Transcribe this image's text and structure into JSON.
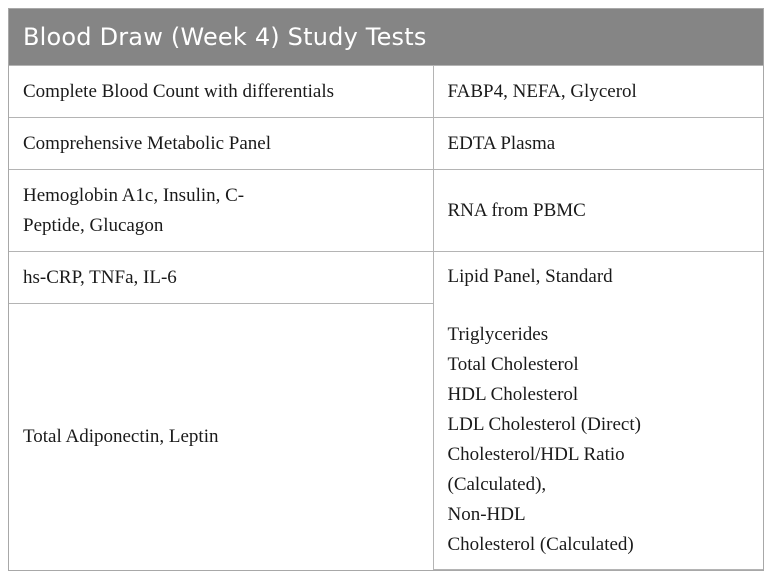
{
  "header": {
    "title": "Blood Draw (Week 4) Study Tests"
  },
  "rows": [
    {
      "left": "Complete Blood Count with differentials",
      "right": "FABP4, NEFA, Glycerol"
    },
    {
      "left": "Comprehensive Metabolic Panel",
      "right": "EDTA Plasma"
    },
    {
      "left_line1": "Hemoglobin A1c, Insulin, C-",
      "left_line2": "Peptide, Glucagon",
      "right": "RNA from PBMC"
    }
  ],
  "row4": {
    "left": "hs-CRP, TNFa, IL-6"
  },
  "row5": {
    "left": "Total Adiponectin, Leptin"
  },
  "lipid": {
    "title": "Lipid Panel, Standard",
    "items": [
      "Triglycerides",
      "Total Cholesterol",
      "HDL Cholesterol",
      "LDL Cholesterol (Direct)",
      "Cholesterol/HDL Ratio",
      "(Calculated),",
      "Non-HDL",
      "Cholesterol (Calculated)"
    ]
  }
}
